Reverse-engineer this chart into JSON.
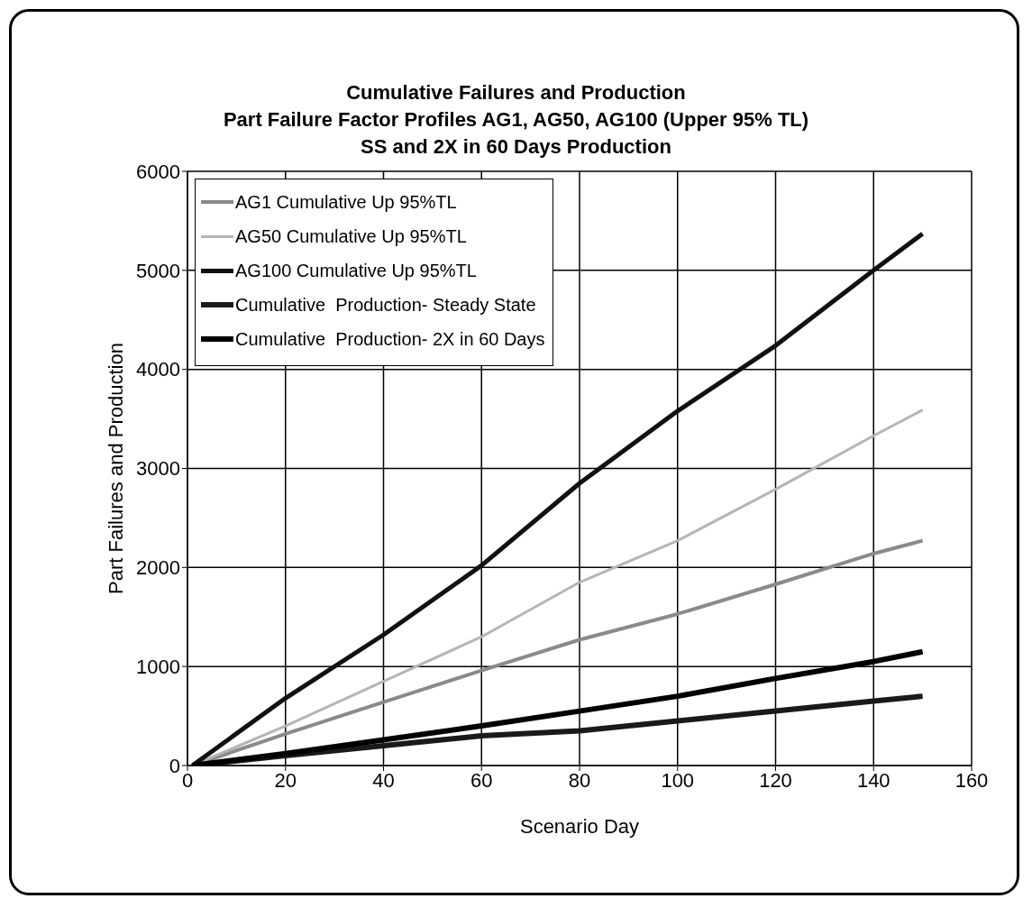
{
  "chart_data": {
    "type": "line",
    "title": "Cumulative Failures and Production",
    "subtitle": "Part Failure Factor Profiles AG1, AG50, AG100 (Upper 95% TL)\nSS and 2X in 60 Days Production",
    "xlabel": "Scenario Day",
    "ylabel": "Part Failures and Production",
    "x": [
      1,
      20,
      40,
      60,
      80,
      100,
      120,
      140,
      150
    ],
    "series": [
      {
        "name": "AG1 Cumulative Up 95%TL",
        "color": "#8a8a8a",
        "values": [
          0,
          320,
          640,
          960,
          1270,
          1530,
          1830,
          2140,
          2270
        ]
      },
      {
        "name": "AG50 Cumulative Up 95%TL",
        "color": "#b5b5b5",
        "values": [
          0,
          400,
          850,
          1300,
          1850,
          2270,
          2790,
          3330,
          3590
        ]
      },
      {
        "name": "AG100 Cumulative Up 95%TL",
        "color": "#111111",
        "values": [
          0,
          680,
          1320,
          2020,
          2850,
          3580,
          4240,
          5000,
          5370
        ]
      },
      {
        "name": "Cumulative  Production- Steady State",
        "color": "#1a1a1a",
        "values": [
          0,
          100,
          200,
          300,
          350,
          450,
          550,
          650,
          700
        ]
      },
      {
        "name": "Cumulative  Production- 2X in 60 Days",
        "color": "#000000",
        "values": [
          0,
          120,
          260,
          400,
          550,
          700,
          880,
          1050,
          1150
        ]
      }
    ],
    "xlim": [
      0,
      160
    ],
    "xticks": [
      0,
      20,
      40,
      60,
      80,
      100,
      120,
      140,
      160
    ],
    "ylim": [
      0,
      6000
    ],
    "yticks": [
      0,
      1000,
      2000,
      3000,
      4000,
      5000,
      6000
    ],
    "grid": true,
    "legend": "top left",
    "marker": "none",
    "line_style": "solid"
  }
}
